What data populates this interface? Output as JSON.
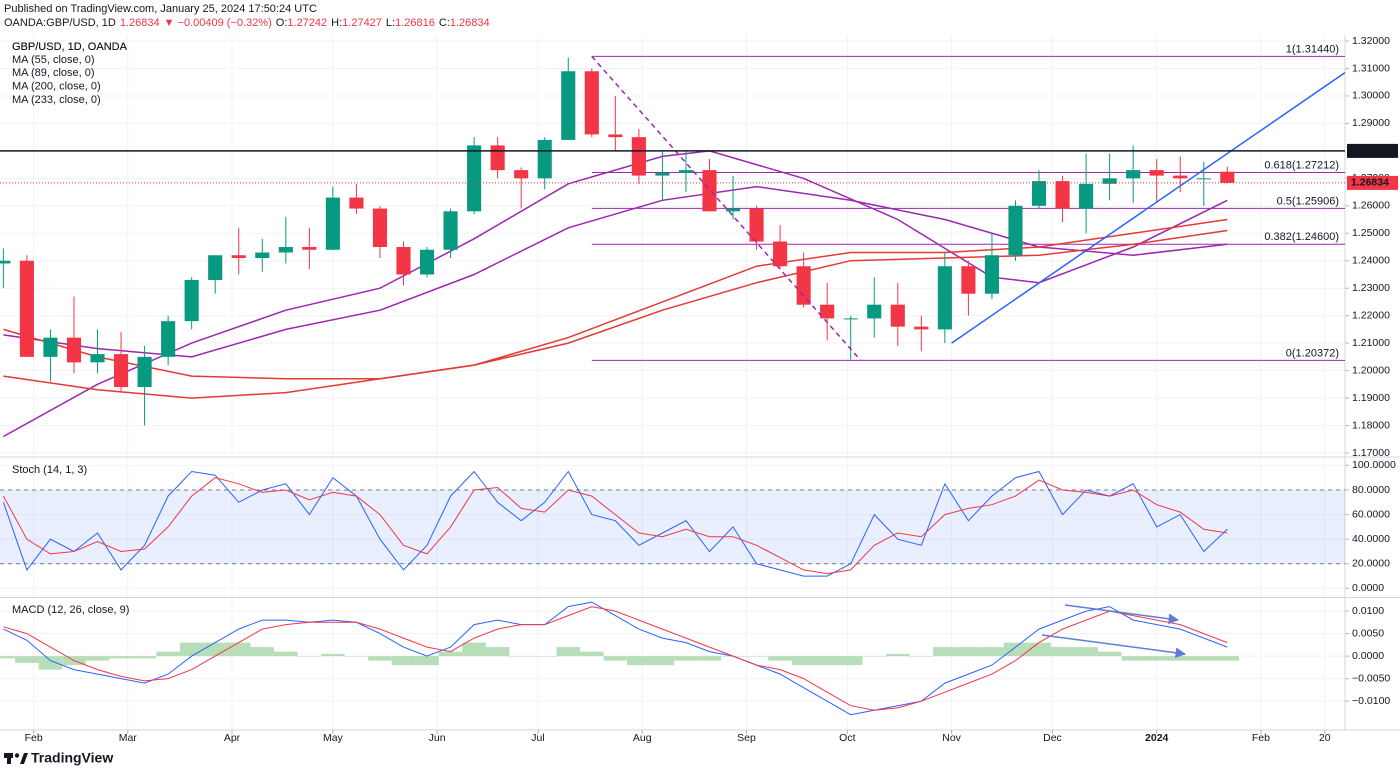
{
  "header": {
    "published": "Published on TradingView.com, January 25, 2024 17:50:24 UTC",
    "symbol": "OANDA:GBP/USD, 1D",
    "last": "1.26834",
    "change": "▼ −0.00409 (−0.32%)",
    "ohlc": [
      {
        "key": "O:",
        "value": "1.27242"
      },
      {
        "key": "H:",
        "value": "1.27427"
      },
      {
        "key": "L:",
        "value": "1.26816"
      },
      {
        "key": "C:",
        "value": "1.26834"
      }
    ]
  },
  "footer": {
    "brand": "TradingView"
  },
  "chart_data": [
    {
      "type": "candlestick",
      "title": "GBP/USD, 1D, OANDA",
      "up_color": "#089981",
      "down_color": "#f23645",
      "xlim": [
        21,
        421
      ],
      "ylim": [
        1.1689,
        1.3222
      ],
      "grid": true,
      "xticks": [
        {
          "value": 31,
          "label": "Feb"
        },
        {
          "value": 59,
          "label": "Mar"
        },
        {
          "value": 90,
          "label": "Apr"
        },
        {
          "value": 120,
          "label": "May"
        },
        {
          "value": 151,
          "label": "Jun"
        },
        {
          "value": 181,
          "label": "Jul"
        },
        {
          "value": 212,
          "label": "Aug"
        },
        {
          "value": 243,
          "label": "Sep"
        },
        {
          "value": 273,
          "label": "Oct"
        },
        {
          "value": 304,
          "label": "Nov"
        },
        {
          "value": 334,
          "label": "Dec"
        },
        {
          "value": 365,
          "label": "2024"
        },
        {
          "value": 396,
          "label": "Feb"
        },
        {
          "value": 415,
          "label": "20"
        }
      ],
      "yticks": [
        {
          "value": 1.17,
          "label": "1.17000"
        },
        {
          "value": 1.18,
          "label": "1.18000"
        },
        {
          "value": 1.19,
          "label": "1.19000"
        },
        {
          "value": 1.2,
          "label": "1.20000"
        },
        {
          "value": 1.21,
          "label": "1.21000"
        },
        {
          "value": 1.22,
          "label": "1.22000"
        },
        {
          "value": 1.23,
          "label": "1.23000"
        },
        {
          "value": 1.24,
          "label": "1.24000"
        },
        {
          "value": 1.25,
          "label": "1.25000"
        },
        {
          "value": 1.26,
          "label": "1.26000"
        },
        {
          "value": 1.27,
          "label": "1.27000"
        },
        {
          "value": 1.29,
          "label": "1.29000"
        },
        {
          "value": 1.3,
          "label": "1.30000"
        },
        {
          "value": 1.31,
          "label": "1.31000"
        },
        {
          "value": 1.32,
          "label": "1.32000"
        }
      ],
      "x": [
        22,
        29,
        36,
        43,
        50,
        57,
        64,
        71,
        78,
        85,
        92,
        99,
        106,
        113,
        120,
        127,
        134,
        141,
        148,
        155,
        162,
        169,
        176,
        183,
        190,
        197,
        204,
        211,
        218,
        225,
        232,
        239,
        246,
        253,
        260,
        267,
        274,
        281,
        288,
        295,
        302,
        309,
        316,
        323,
        330,
        337,
        344,
        351,
        358,
        365,
        372,
        379,
        386
      ],
      "open": [
        1.239,
        1.24,
        1.205,
        1.212,
        1.203,
        1.206,
        1.194,
        1.205,
        1.218,
        1.233,
        1.242,
        1.241,
        1.243,
        1.245,
        1.244,
        1.263,
        1.259,
        1.245,
        1.235,
        1.244,
        1.258,
        1.282,
        1.273,
        1.27,
        1.284,
        1.309,
        1.286,
        1.285,
        1.271,
        1.272,
        1.273,
        1.258,
        1.259,
        1.247,
        1.238,
        1.224,
        1.219,
        1.219,
        1.224,
        1.216,
        1.215,
        1.238,
        1.228,
        1.242,
        1.26,
        1.269,
        1.259,
        1.268,
        1.27,
        1.273,
        1.271,
        1.27,
        1.27242
      ],
      "high": [
        1.2445,
        1.242,
        1.215,
        1.227,
        1.215,
        1.214,
        1.209,
        1.22,
        1.234,
        1.242,
        1.252,
        1.248,
        1.256,
        1.252,
        1.267,
        1.268,
        1.26,
        1.247,
        1.245,
        1.259,
        1.285,
        1.285,
        1.274,
        1.285,
        1.314,
        1.31,
        1.3,
        1.288,
        1.28,
        1.28,
        1.277,
        1.271,
        1.26,
        1.253,
        1.243,
        1.232,
        1.22,
        1.234,
        1.232,
        1.22,
        1.243,
        1.24,
        1.25,
        1.262,
        1.273,
        1.271,
        1.279,
        1.279,
        1.282,
        1.277,
        1.278,
        1.276,
        1.27427
      ],
      "low": [
        1.23,
        1.205,
        1.196,
        1.199,
        1.199,
        1.192,
        1.18,
        1.202,
        1.215,
        1.228,
        1.235,
        1.236,
        1.239,
        1.237,
        1.244,
        1.257,
        1.241,
        1.231,
        1.234,
        1.241,
        1.257,
        1.27,
        1.259,
        1.266,
        1.284,
        1.285,
        1.28,
        1.268,
        1.262,
        1.265,
        1.258,
        1.255,
        1.244,
        1.237,
        1.223,
        1.211,
        1.204,
        1.212,
        1.209,
        1.207,
        1.21,
        1.22,
        1.226,
        1.24,
        1.259,
        1.254,
        1.25,
        1.262,
        1.261,
        1.261,
        1.265,
        1.26,
        1.26816
      ],
      "close": [
        1.24,
        1.205,
        1.212,
        1.203,
        1.206,
        1.194,
        1.205,
        1.218,
        1.233,
        1.242,
        1.241,
        1.243,
        1.245,
        1.244,
        1.263,
        1.259,
        1.245,
        1.235,
        1.244,
        1.258,
        1.282,
        1.273,
        1.27,
        1.284,
        1.309,
        1.286,
        1.285,
        1.271,
        1.272,
        1.273,
        1.258,
        1.259,
        1.247,
        1.238,
        1.224,
        1.219,
        1.219,
        1.224,
        1.216,
        1.215,
        1.238,
        1.228,
        1.242,
        1.26,
        1.269,
        1.259,
        1.268,
        1.27,
        1.273,
        1.271,
        1.27,
        1.27,
        1.26834
      ],
      "ma": [
        {
          "name": "MA (55, close, 0)",
          "color": "#9c27b0",
          "x": [
            22,
            50,
            78,
            106,
            134,
            162,
            190,
            218,
            232,
            260,
            288,
            316,
            330,
            358,
            386
          ],
          "values": [
            1.176,
            1.195,
            1.21,
            1.222,
            1.23,
            1.248,
            1.268,
            1.278,
            1.28,
            1.27,
            1.255,
            1.234,
            1.232,
            1.245,
            1.262
          ]
        },
        {
          "name": "MA (89, close, 0)",
          "color": "#9c27b0",
          "x": [
            22,
            50,
            78,
            106,
            134,
            162,
            190,
            218,
            246,
            274,
            302,
            330,
            358,
            386
          ],
          "values": [
            1.213,
            1.208,
            1.205,
            1.215,
            1.222,
            1.235,
            1.252,
            1.262,
            1.267,
            1.262,
            1.255,
            1.245,
            1.242,
            1.246
          ]
        },
        {
          "name": "MA (200, close, 0)",
          "color": "#e53935",
          "x": [
            22,
            50,
            78,
            106,
            134,
            162,
            190,
            218,
            246,
            274,
            302,
            330,
            358,
            386
          ],
          "values": [
            1.215,
            1.205,
            1.198,
            1.197,
            1.197,
            1.202,
            1.212,
            1.225,
            1.238,
            1.243,
            1.243,
            1.245,
            1.25,
            1.255
          ]
        },
        {
          "name": "MA (233, close, 0)",
          "color": "#e53935",
          "x": [
            22,
            50,
            78,
            106,
            134,
            162,
            190,
            218,
            246,
            274,
            302,
            330,
            358,
            386
          ],
          "values": [
            1.198,
            1.193,
            1.19,
            1.192,
            1.197,
            1.202,
            1.21,
            1.222,
            1.232,
            1.24,
            1.241,
            1.242,
            1.246,
            1.251
          ]
        }
      ],
      "price_lines": [
        {
          "value": 1.28,
          "label": "1.28000",
          "color": "#131722",
          "dotted": false
        },
        {
          "value": 1.26834,
          "label": "1.26834",
          "color": "#f23645",
          "dotted": true
        }
      ],
      "fib": {
        "x_start": 197,
        "color": "#9c27b0",
        "levels": [
          {
            "value": 1.3144,
            "label": "1(1.31440)"
          },
          {
            "value": 1.27212,
            "label": "0.618(1.27212)"
          },
          {
            "value": 1.25906,
            "label": "0.5(1.25906)"
          },
          {
            "value": 1.246,
            "label": "0.382(1.24600)"
          },
          {
            "value": 1.20372,
            "label": "0(1.20372)"
          }
        ]
      },
      "trendlines": [
        {
          "x": [
            304,
            421
          ],
          "y": [
            1.21,
            1.3085
          ],
          "color": "#2962ff",
          "dashed": false
        },
        {
          "x": [
            197,
            277
          ],
          "y": [
            1.3144,
            1.2037
          ],
          "color": "#9c27b0",
          "dashed": true
        }
      ]
    },
    {
      "type": "line",
      "title": "Stoch (14, 1, 3)",
      "ylim": [
        -7,
        106
      ],
      "yticks": [
        {
          "value": 0,
          "label": "0.0000"
        },
        {
          "value": 20,
          "label": "20.0000"
        },
        {
          "value": 40,
          "label": "40.0000"
        },
        {
          "value": 60,
          "label": "60.0000"
        },
        {
          "value": 80,
          "label": "80.0000"
        },
        {
          "value": 100,
          "label": "100.0000"
        }
      ],
      "band": [
        20,
        80
      ],
      "x": [
        22,
        29,
        36,
        43,
        50,
        57,
        64,
        71,
        78,
        85,
        92,
        99,
        106,
        113,
        120,
        127,
        134,
        141,
        148,
        155,
        162,
        169,
        176,
        183,
        190,
        197,
        204,
        211,
        218,
        225,
        232,
        239,
        246,
        253,
        260,
        267,
        274,
        281,
        288,
        295,
        302,
        309,
        316,
        323,
        330,
        337,
        344,
        351,
        358,
        365,
        372,
        379,
        386
      ],
      "series": [
        {
          "color": "#2962ff",
          "values": [
            70,
            15,
            40,
            30,
            45,
            15,
            35,
            75,
            95,
            92,
            70,
            80,
            85,
            60,
            90,
            75,
            40,
            15,
            35,
            75,
            95,
            70,
            55,
            70,
            95,
            60,
            55,
            35,
            45,
            55,
            30,
            50,
            20,
            15,
            10,
            10,
            20,
            60,
            40,
            35,
            85,
            55,
            75,
            90,
            95,
            60,
            80,
            75,
            85,
            50,
            60,
            30,
            48
          ]
        },
        {
          "color": "#f23645",
          "values": [
            75,
            40,
            28,
            30,
            38,
            30,
            32,
            50,
            75,
            90,
            85,
            78,
            80,
            72,
            78,
            75,
            60,
            35,
            28,
            50,
            80,
            82,
            65,
            62,
            80,
            75,
            60,
            45,
            42,
            48,
            42,
            42,
            35,
            25,
            15,
            12,
            15,
            35,
            45,
            42,
            60,
            65,
            68,
            75,
            88,
            80,
            78,
            75,
            80,
            68,
            62,
            48,
            45
          ]
        }
      ]
    },
    {
      "type": "macd",
      "title": "MACD (12, 26, close, 9)",
      "ylim": [
        -0.0164,
        0.0129
      ],
      "yticks": [
        {
          "value": -0.01,
          "label": "−0.0100"
        },
        {
          "value": -0.005,
          "label": "−0.0050"
        },
        {
          "value": 0,
          "label": "0.0000"
        },
        {
          "value": 0.005,
          "label": "0.0050"
        },
        {
          "value": 0.01,
          "label": "0.0100"
        }
      ],
      "x": [
        22,
        29,
        36,
        43,
        50,
        57,
        64,
        71,
        78,
        85,
        92,
        99,
        106,
        113,
        120,
        127,
        134,
        141,
        148,
        155,
        162,
        169,
        176,
        183,
        190,
        197,
        204,
        211,
        218,
        225,
        232,
        239,
        246,
        253,
        260,
        267,
        274,
        281,
        288,
        295,
        302,
        309,
        316,
        323,
        330,
        337,
        344,
        351,
        358,
        365,
        372,
        379,
        386
      ],
      "histogram": {
        "color": "#a5d6a7",
        "values": [
          -0.0005,
          -0.0015,
          -0.003,
          -0.002,
          -0.001,
          -0.0005,
          -0.0005,
          0.001,
          0.003,
          0.003,
          0.003,
          0.002,
          0.001,
          0,
          0.0005,
          0,
          -0.001,
          -0.002,
          -0.002,
          0.001,
          0.003,
          0.002,
          0,
          0,
          0.002,
          0.001,
          -0.001,
          -0.002,
          -0.002,
          -0.001,
          -0.001,
          0,
          0,
          -0.001,
          -0.002,
          -0.002,
          -0.002,
          0,
          0.0005,
          0,
          0.002,
          0.002,
          0.002,
          0.003,
          0.003,
          0.002,
          0.002,
          0.001,
          -0.001,
          -0.001,
          -0.001,
          -0.001,
          -0.001
        ]
      },
      "series": [
        {
          "color": "#2962ff",
          "values": [
            0.006,
            0.0035,
            -0.001,
            -0.003,
            -0.004,
            -0.005,
            -0.006,
            -0.004,
            0,
            0.003,
            0.006,
            0.008,
            0.008,
            0.0075,
            0.008,
            0.0075,
            0.005,
            0.002,
            0,
            0.002,
            0.007,
            0.008,
            0.007,
            0.007,
            0.011,
            0.012,
            0.009,
            0.006,
            0.004,
            0.003,
            0.001,
            0,
            -0.002,
            -0.004,
            -0.007,
            -0.01,
            -0.013,
            -0.012,
            -0.011,
            -0.01,
            -0.006,
            -0.004,
            -0.002,
            0.002,
            0.006,
            0.008,
            0.01,
            0.011,
            0.008,
            0.007,
            0.006,
            0.004,
            0.002
          ]
        },
        {
          "color": "#f23645",
          "values": [
            0.0065,
            0.005,
            0.002,
            -0.001,
            -0.003,
            -0.0045,
            -0.0055,
            -0.005,
            -0.003,
            0,
            0.003,
            0.006,
            0.007,
            0.0075,
            0.0075,
            0.0075,
            0.006,
            0.004,
            0.002,
            0.001,
            0.004,
            0.006,
            0.007,
            0.007,
            0.009,
            0.011,
            0.01,
            0.008,
            0.006,
            0.004,
            0.002,
            0,
            -0.002,
            -0.003,
            -0.005,
            -0.008,
            -0.011,
            -0.012,
            -0.0115,
            -0.01,
            -0.008,
            -0.006,
            -0.004,
            -0.001,
            0.003,
            0.006,
            0.008,
            0.01,
            0.009,
            0.008,
            0.007,
            0.005,
            0.003
          ]
        }
      ]
    }
  ]
}
